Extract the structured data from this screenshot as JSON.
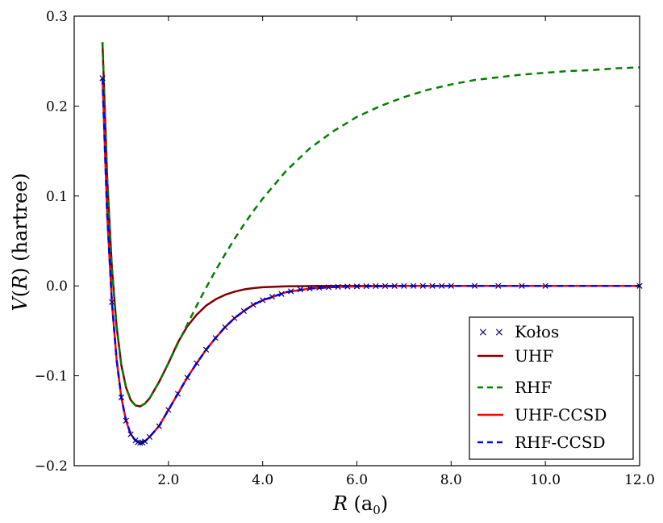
{
  "chart_data": {
    "type": "line",
    "title": "",
    "xlabel": {
      "italic": "R",
      "text": " (a",
      "subscript": "0",
      "close": ")"
    },
    "ylabel": {
      "italic": "V",
      "open": "(",
      "italic2": "R",
      "close": ")",
      "text": " (hartree)"
    },
    "xlim": [
      0,
      12.0
    ],
    "ylim": [
      -0.2,
      0.3
    ],
    "xticks": [
      {
        "value": 2.0,
        "label": "2.0"
      },
      {
        "value": 4.0,
        "label": "4.0"
      },
      {
        "value": 6.0,
        "label": "6.0"
      },
      {
        "value": 8.0,
        "label": "8.0"
      },
      {
        "value": 10.0,
        "label": "10.0"
      },
      {
        "value": 12.0,
        "label": "12.0"
      }
    ],
    "yticks": [
      {
        "value": -0.2,
        "label": "−0.2"
      },
      {
        "value": -0.1,
        "label": "−0.1"
      },
      {
        "value": 0.0,
        "label": "0.0"
      },
      {
        "value": 0.1,
        "label": "0.1"
      },
      {
        "value": 0.2,
        "label": "0.2"
      },
      {
        "value": 0.3,
        "label": "0.3"
      }
    ],
    "grid": false,
    "legend_position": "lower-right",
    "series": [
      {
        "name": "Kołos",
        "style": "marker-x",
        "color": "#000080",
        "x": [
          0.6,
          0.8,
          1.0,
          1.1,
          1.2,
          1.3,
          1.35,
          1.4,
          1.45,
          1.5,
          1.6,
          1.8,
          2.0,
          2.2,
          2.4,
          2.6,
          2.8,
          3.0,
          3.2,
          3.4,
          3.6,
          3.8,
          4.0,
          4.2,
          4.4,
          4.6,
          4.8,
          5.0,
          5.2,
          5.4,
          5.6,
          5.8,
          6.0,
          6.2,
          6.4,
          6.6,
          6.8,
          7.0,
          7.2,
          7.4,
          7.6,
          7.8,
          8.0,
          8.5,
          9.0,
          9.5,
          10.0,
          12.0
        ],
        "y": [
          0.231,
          -0.018,
          -0.124,
          -0.15,
          -0.165,
          -0.172,
          -0.174,
          -0.1745,
          -0.1744,
          -0.173,
          -0.168,
          -0.156,
          -0.138,
          -0.12,
          -0.102,
          -0.086,
          -0.071,
          -0.058,
          -0.046,
          -0.036,
          -0.028,
          -0.021,
          -0.016,
          -0.012,
          -0.009,
          -0.006,
          -0.004,
          -0.003,
          -0.002,
          -0.0015,
          -0.001,
          -0.0008,
          -0.0006,
          -0.0004,
          -0.0003,
          -0.0002,
          -0.00015,
          -0.0001,
          -8e-05,
          -6e-05,
          -5e-05,
          -4e-05,
          -3e-05,
          -2e-05,
          -1e-05,
          0.0,
          0.0,
          0.0
        ]
      },
      {
        "name": "UHF",
        "style": "solid",
        "color": "#800000",
        "x": [
          0.6,
          0.7,
          0.8,
          0.9,
          1.0,
          1.1,
          1.2,
          1.3,
          1.4,
          1.5,
          1.6,
          1.8,
          2.0,
          2.2,
          2.4,
          2.6,
          2.8,
          3.0,
          3.2,
          3.4,
          3.6,
          3.8,
          4.0,
          4.5,
          5.0,
          5.5,
          6.0,
          7.0,
          8.0,
          9.0,
          10.0,
          11.0,
          12.0
        ],
        "y": [
          0.271,
          0.12,
          0.02,
          -0.045,
          -0.088,
          -0.113,
          -0.127,
          -0.133,
          -0.134,
          -0.131,
          -0.125,
          -0.107,
          -0.086,
          -0.063,
          -0.045,
          -0.032,
          -0.022,
          -0.015,
          -0.01,
          -0.0065,
          -0.004,
          -0.0025,
          -0.0015,
          -0.0005,
          -0.0002,
          -0.0001,
          0.0,
          0.0,
          0.0,
          0.0,
          0.0,
          0.0,
          0.0
        ]
      },
      {
        "name": "RHF",
        "style": "dashed",
        "color": "#008000",
        "x": [
          0.6,
          0.7,
          0.8,
          0.9,
          1.0,
          1.1,
          1.2,
          1.3,
          1.4,
          1.5,
          1.6,
          1.8,
          2.0,
          2.2,
          2.4,
          2.6,
          2.8,
          3.0,
          3.2,
          3.4,
          3.6,
          3.8,
          4.0,
          4.5,
          5.0,
          5.5,
          6.0,
          6.5,
          7.0,
          7.5,
          8.0,
          8.5,
          9.0,
          9.5,
          10.0,
          10.5,
          11.0,
          11.5,
          12.0
        ],
        "y": [
          0.271,
          0.12,
          0.02,
          -0.045,
          -0.088,
          -0.113,
          -0.127,
          -0.133,
          -0.134,
          -0.131,
          -0.125,
          -0.107,
          -0.086,
          -0.064,
          -0.043,
          -0.022,
          -0.002,
          0.017,
          0.035,
          0.052,
          0.068,
          0.083,
          0.097,
          0.128,
          0.153,
          0.172,
          0.188,
          0.2,
          0.21,
          0.218,
          0.224,
          0.229,
          0.232,
          0.235,
          0.237,
          0.239,
          0.24,
          0.242,
          0.243
        ]
      },
      {
        "name": "UHF-CCSD",
        "style": "solid",
        "color": "#ff0000",
        "x": [
          0.6,
          0.7,
          0.8,
          0.9,
          1.0,
          1.1,
          1.2,
          1.3,
          1.4,
          1.5,
          1.6,
          1.8,
          2.0,
          2.2,
          2.4,
          2.6,
          2.8,
          3.0,
          3.2,
          3.4,
          3.6,
          3.8,
          4.0,
          4.5,
          5.0,
          5.5,
          6.0,
          7.0,
          8.0,
          9.0,
          10.0,
          11.0,
          12.0
        ],
        "y": [
          0.231,
          0.08,
          -0.018,
          -0.082,
          -0.124,
          -0.15,
          -0.165,
          -0.172,
          -0.1745,
          -0.173,
          -0.168,
          -0.156,
          -0.138,
          -0.12,
          -0.102,
          -0.086,
          -0.071,
          -0.058,
          -0.046,
          -0.036,
          -0.028,
          -0.021,
          -0.016,
          -0.007,
          -0.003,
          -0.0013,
          -0.0006,
          -0.0001,
          0.0,
          0.0,
          0.0,
          0.0,
          0.0
        ]
      },
      {
        "name": "RHF-CCSD",
        "style": "dashed",
        "color": "#0000ff",
        "x": [
          0.6,
          0.7,
          0.8,
          0.9,
          1.0,
          1.1,
          1.2,
          1.3,
          1.4,
          1.5,
          1.6,
          1.8,
          2.0,
          2.2,
          2.4,
          2.6,
          2.8,
          3.0,
          3.2,
          3.4,
          3.6,
          3.8,
          4.0,
          4.5,
          5.0,
          5.5,
          6.0,
          7.0,
          8.0,
          9.0,
          10.0,
          11.0,
          12.0
        ],
        "y": [
          0.231,
          0.08,
          -0.018,
          -0.082,
          -0.124,
          -0.15,
          -0.165,
          -0.172,
          -0.1745,
          -0.173,
          -0.168,
          -0.156,
          -0.138,
          -0.12,
          -0.102,
          -0.086,
          -0.071,
          -0.058,
          -0.046,
          -0.036,
          -0.028,
          -0.021,
          -0.016,
          -0.007,
          -0.003,
          -0.0013,
          -0.0006,
          -0.0001,
          0.0,
          0.0,
          0.0,
          0.0,
          0.0
        ]
      }
    ]
  }
}
